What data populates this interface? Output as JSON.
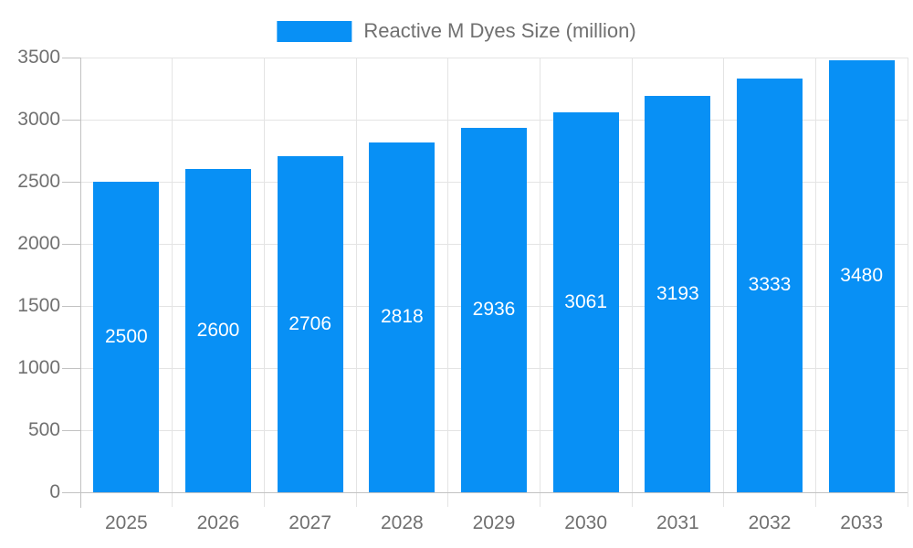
{
  "legend": {
    "label": "Reactive M Dyes Size (million)"
  },
  "chart_data": {
    "type": "bar",
    "title": "Reactive M Dyes Size (million)",
    "series_name": "Reactive M Dyes Size (million)",
    "categories": [
      "2025",
      "2026",
      "2027",
      "2028",
      "2029",
      "2030",
      "2031",
      "2032",
      "2033"
    ],
    "values": [
      2500,
      2600,
      2706,
      2818,
      2936,
      3061,
      3193,
      3333,
      3480
    ],
    "value_labels_visible": true,
    "xlabel": "",
    "ylabel": "",
    "ylim": [
      0,
      3500
    ],
    "ytick_step": 500,
    "yticks": [
      0,
      500,
      1000,
      1500,
      2000,
      2500,
      3000,
      3500
    ],
    "grid": true,
    "legend_position": "top",
    "colors": {
      "bar": "#0890f5",
      "bar_value_text": "#ffffff",
      "axis_text": "#707070",
      "grid": "#e4e4e4",
      "axis": "#c2c2c2",
      "background": "#ffffff"
    }
  }
}
